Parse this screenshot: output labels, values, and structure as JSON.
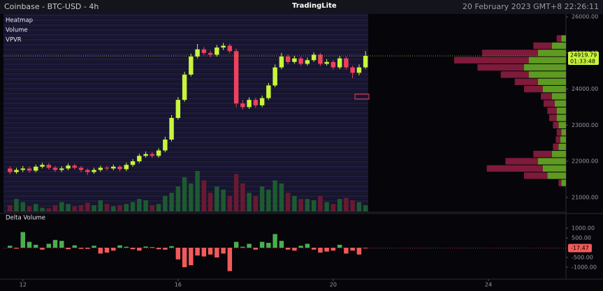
{
  "header": {
    "title": "Coinbase - BTC-USD - 4h",
    "brand": "TradingLite",
    "datetime": "20 February 2023 GMT+8 22:26:11"
  },
  "chart_data": [
    {
      "type": "candlestick",
      "layers": [
        "Heatmap",
        "Volume",
        "VPVR"
      ],
      "x": [
        11.667,
        11.833,
        12,
        12.167,
        12.333,
        12.5,
        12.667,
        12.833,
        13,
        13.167,
        13.333,
        13.5,
        13.667,
        13.833,
        14,
        14.167,
        14.333,
        14.5,
        14.667,
        14.833,
        15,
        15.167,
        15.333,
        15.5,
        15.667,
        15.833,
        16,
        16.167,
        16.333,
        16.5,
        16.667,
        16.833,
        17,
        17.167,
        17.333,
        17.5,
        17.667,
        17.833,
        18,
        18.167,
        18.333,
        18.5,
        18.667,
        18.833,
        19,
        19.167,
        19.333,
        19.5,
        19.667,
        19.833,
        20,
        20.167,
        20.333,
        20.5,
        20.667,
        20.833
      ],
      "open": [
        21800,
        21700,
        21760,
        21800,
        21740,
        21850,
        21900,
        21820,
        21760,
        21800,
        21880,
        21820,
        21760,
        21700,
        21760,
        21820,
        21800,
        21850,
        21780,
        21900,
        22000,
        22150,
        22200,
        22150,
        22300,
        22600,
        23200,
        23700,
        24400,
        24900,
        25100,
        25000,
        24950,
        25150,
        25200,
        25050,
        23600,
        23500,
        23700,
        23550,
        23750,
        24100,
        24600,
        24900,
        24750,
        24850,
        24700,
        24800,
        24950,
        24700,
        24750,
        24600,
        24850,
        24600,
        24450,
        24600
      ],
      "high": [
        21860,
        21820,
        21870,
        21850,
        21910,
        21960,
        21950,
        21870,
        21860,
        21940,
        21930,
        21870,
        21800,
        21820,
        21880,
        21870,
        21910,
        21890,
        21960,
        22060,
        22210,
        22270,
        22260,
        22360,
        22680,
        23280,
        23780,
        24480,
        24980,
        25250,
        25160,
        25060,
        25220,
        25280,
        25260,
        25120,
        23700,
        23770,
        23760,
        23820,
        24170,
        24680,
        25000,
        24960,
        24920,
        24900,
        24870,
        25020,
        25000,
        24830,
        24800,
        24920,
        24900,
        24650,
        24680,
        25050
      ],
      "low": [
        21640,
        21650,
        21700,
        21680,
        21690,
        21800,
        21770,
        21700,
        21700,
        21750,
        21770,
        21700,
        21620,
        21650,
        21710,
        21740,
        21750,
        21720,
        21730,
        21850,
        21950,
        22100,
        22090,
        22100,
        22250,
        22550,
        23150,
        23650,
        24350,
        24850,
        24940,
        24880,
        24900,
        25080,
        24990,
        23500,
        23430,
        23450,
        23480,
        23500,
        23700,
        24050,
        24550,
        24690,
        24700,
        24640,
        24650,
        24750,
        24640,
        24650,
        24540,
        24550,
        24540,
        24300,
        24380,
        24560
      ],
      "close": [
        21700,
        21760,
        21800,
        21740,
        21850,
        21900,
        21820,
        21760,
        21800,
        21880,
        21820,
        21760,
        21700,
        21760,
        21820,
        21800,
        21850,
        21780,
        21900,
        22000,
        22150,
        22200,
        22150,
        22300,
        22600,
        23200,
        23700,
        24400,
        24900,
        25100,
        25000,
        24950,
        25150,
        25200,
        25050,
        23600,
        23500,
        23700,
        23550,
        23750,
        24100,
        24600,
        24900,
        24750,
        24850,
        24700,
        24800,
        24950,
        24700,
        24750,
        24600,
        24850,
        24600,
        24450,
        24600,
        24919.79
      ],
      "volume": [
        10,
        20,
        15,
        8,
        12,
        6,
        5,
        10,
        15,
        12,
        8,
        10,
        14,
        10,
        18,
        12,
        8,
        10,
        12,
        15,
        20,
        18,
        10,
        12,
        25,
        30,
        40,
        55,
        45,
        65,
        50,
        30,
        40,
        35,
        25,
        60,
        45,
        30,
        25,
        40,
        35,
        50,
        45,
        30,
        25,
        20,
        20,
        18,
        25,
        15,
        12,
        20,
        22,
        18,
        15,
        10
      ],
      "vpvr": {
        "prices": [
          21400,
          21600,
          21800,
          22000,
          22200,
          22400,
          22600,
          22800,
          23000,
          23200,
          23400,
          23600,
          23800,
          24000,
          24200,
          24400,
          24600,
          24800,
          25000,
          25200,
          25400
        ],
        "buy": [
          5,
          20,
          25,
          30,
          15,
          8,
          6,
          5,
          8,
          10,
          10,
          12,
          15,
          25,
          30,
          40,
          45,
          40,
          30,
          15,
          5
        ],
        "sell": [
          3,
          25,
          60,
          35,
          20,
          6,
          5,
          5,
          6,
          8,
          10,
          12,
          12,
          20,
          25,
          30,
          50,
          80,
          60,
          20,
          5
        ]
      },
      "up_color": "#c8f53c",
      "down_color": "#f0405e",
      "xlim": [
        11.5,
        26
      ],
      "xticks": [
        12,
        16,
        20,
        24
      ],
      "ylim": [
        20610,
        26080
      ],
      "yticks": [
        {
          "value": 21000,
          "label": "21000.00"
        },
        {
          "value": 22000,
          "label": "22000.00"
        },
        {
          "value": 23000,
          "label": "23000.00"
        },
        {
          "value": 24000,
          "label": "24000.00"
        },
        {
          "value": 25000,
          "label": "25000.00"
        },
        {
          "value": 26000,
          "label": "26000.00"
        }
      ],
      "countdown": "01:33:48"
    },
    {
      "type": "bar",
      "title": "Delta Volume",
      "values": [
        100,
        -50,
        800,
        300,
        150,
        -100,
        200,
        400,
        350,
        -80,
        120,
        -60,
        -60,
        100,
        -300,
        -250,
        -150,
        120,
        50,
        -80,
        -150,
        60,
        30,
        -80,
        -100,
        80,
        -600,
        -1000,
        -900,
        -400,
        -450,
        -350,
        -500,
        -300,
        -1200,
        300,
        50,
        200,
        -100,
        300,
        250,
        700,
        350,
        -100,
        -150,
        100,
        200,
        -100,
        -250,
        -200,
        -150,
        150,
        -300,
        -150,
        -350,
        -17.47
      ],
      "up_color": "#4cae4f",
      "down_color": "#f25a5a",
      "ylim": [
        -1540,
        1680
      ],
      "yticks": [
        {
          "value": 1000,
          "label": "1000.00"
        },
        {
          "value": 500,
          "label": "500.00"
        },
        {
          "value": -500,
          "label": "-500.00"
        },
        {
          "value": -1000,
          "label": "-1000.00"
        }
      ]
    }
  ]
}
